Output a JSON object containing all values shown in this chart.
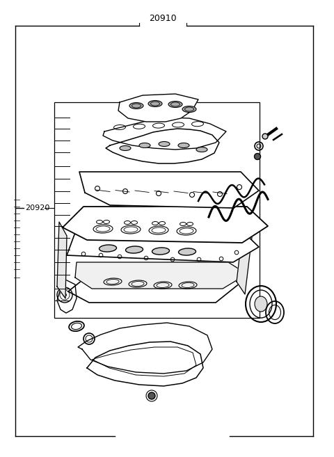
{
  "bg_color": "#ffffff",
  "line_color": "#000000",
  "title_label": "20910",
  "side_label": "20920",
  "fig_width": 4.8,
  "fig_height": 6.57,
  "dpi": 100
}
